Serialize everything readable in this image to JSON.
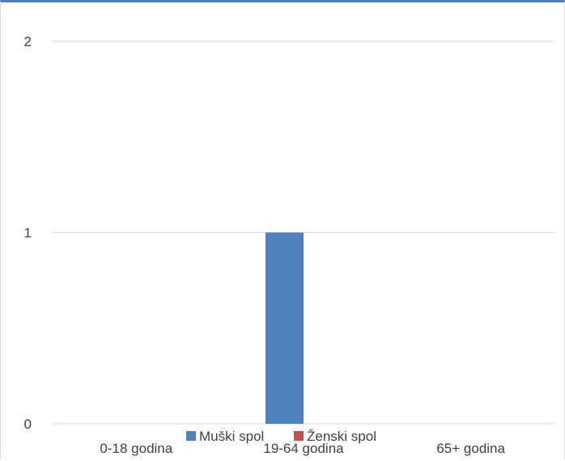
{
  "chart_data": {
    "type": "bar",
    "title": "",
    "xlabel": "",
    "ylabel": "",
    "categories": [
      "0-18 godina",
      "19-64 godina",
      "65+ godina"
    ],
    "series": [
      {
        "name": "Muški spol",
        "values": [
          0,
          1,
          0
        ],
        "color": "#4f81bd"
      },
      {
        "name": "Ženski spol",
        "values": [
          0,
          0,
          0
        ],
        "color": "#c0504d"
      }
    ],
    "ylim": [
      0,
      2
    ],
    "yticks": [
      "0",
      "1",
      "2"
    ],
    "grid": true,
    "legend_position": "bottom",
    "gridline_color": "#d9d9d9",
    "text_color": "#404040"
  }
}
